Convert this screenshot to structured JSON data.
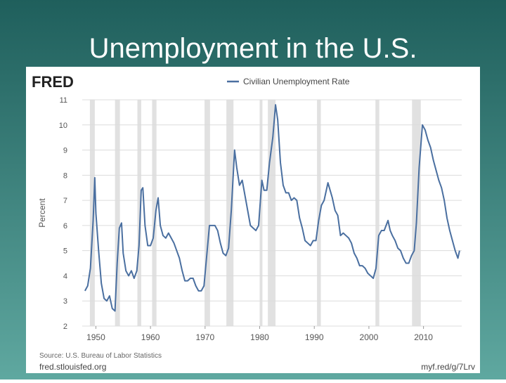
{
  "chart_data": {
    "type": "line",
    "title": "Unemployment in the U.S.",
    "brand": "FRED",
    "ylabel": "Percent",
    "source": "Source: U.S. Bureau of Labor Statistics",
    "footer_left": "fred.stlouisfed.org",
    "footer_right": "myf.red/g/7Lrv",
    "x": [
      1948.0,
      1948.5,
      1949.0,
      1949.5,
      1949.8,
      1950.0,
      1950.5,
      1951.0,
      1951.5,
      1952.0,
      1952.5,
      1953.0,
      1953.5,
      1953.9,
      1954.3,
      1954.7,
      1955.0,
      1955.5,
      1956.0,
      1956.5,
      1957.0,
      1957.5,
      1957.9,
      1958.3,
      1958.6,
      1959.0,
      1959.5,
      1960.0,
      1960.5,
      1961.0,
      1961.4,
      1961.8,
      1962.3,
      1962.8,
      1963.3,
      1963.8,
      1964.3,
      1964.8,
      1965.3,
      1965.8,
      1966.3,
      1966.8,
      1967.3,
      1967.8,
      1968.3,
      1968.8,
      1969.3,
      1969.8,
      1970.3,
      1970.8,
      1971.3,
      1971.8,
      1972.3,
      1972.8,
      1973.3,
      1973.8,
      1974.3,
      1974.8,
      1975.4,
      1975.8,
      1976.3,
      1976.8,
      1977.3,
      1977.8,
      1978.3,
      1978.8,
      1979.3,
      1979.8,
      1980.4,
      1980.8,
      1981.3,
      1981.8,
      1982.4,
      1982.9,
      1983.3,
      1983.8,
      1984.3,
      1984.8,
      1985.3,
      1985.8,
      1986.3,
      1986.8,
      1987.3,
      1987.8,
      1988.3,
      1988.8,
      1989.3,
      1989.8,
      1990.3,
      1990.8,
      1991.3,
      1991.8,
      1992.5,
      1992.9,
      1993.3,
      1993.8,
      1994.3,
      1994.8,
      1995.3,
      1995.8,
      1996.3,
      1996.8,
      1997.3,
      1997.8,
      1998.3,
      1998.8,
      1999.3,
      1999.8,
      2000.3,
      2000.8,
      2001.3,
      2001.8,
      2002.3,
      2002.8,
      2003.5,
      2003.9,
      2004.3,
      2004.8,
      2005.3,
      2005.8,
      2006.3,
      2006.8,
      2007.3,
      2007.8,
      2008.3,
      2008.7,
      2009.2,
      2009.8,
      2010.3,
      2010.8,
      2011.3,
      2011.8,
      2012.3,
      2012.8,
      2013.3,
      2013.8,
      2014.3,
      2014.8,
      2015.3,
      2015.8,
      2016.3,
      2016.6
    ],
    "series": [
      {
        "name": "Civilian Unemployment Rate",
        "color": "#4a6fa0",
        "values": [
          3.4,
          3.6,
          4.3,
          6.2,
          7.9,
          6.5,
          5.0,
          3.7,
          3.1,
          3.0,
          3.2,
          2.7,
          2.6,
          4.5,
          5.9,
          6.1,
          4.9,
          4.2,
          4.0,
          4.2,
          3.9,
          4.2,
          5.2,
          7.4,
          7.5,
          6.0,
          5.2,
          5.2,
          5.5,
          6.6,
          7.1,
          6.0,
          5.6,
          5.5,
          5.7,
          5.5,
          5.3,
          5.0,
          4.7,
          4.2,
          3.8,
          3.8,
          3.9,
          3.9,
          3.6,
          3.4,
          3.4,
          3.6,
          4.8,
          6.0,
          6.0,
          6.0,
          5.8,
          5.3,
          4.9,
          4.8,
          5.1,
          6.6,
          9.0,
          8.3,
          7.6,
          7.8,
          7.2,
          6.6,
          6.0,
          5.9,
          5.8,
          6.0,
          7.8,
          7.4,
          7.4,
          8.5,
          9.5,
          10.8,
          10.2,
          8.5,
          7.6,
          7.3,
          7.3,
          7.0,
          7.1,
          7.0,
          6.3,
          5.9,
          5.4,
          5.3,
          5.2,
          5.4,
          5.4,
          6.2,
          6.8,
          7.0,
          7.7,
          7.4,
          7.1,
          6.6,
          6.4,
          5.6,
          5.7,
          5.6,
          5.5,
          5.3,
          4.9,
          4.7,
          4.4,
          4.4,
          4.3,
          4.1,
          4.0,
          3.9,
          4.3,
          5.6,
          5.8,
          5.8,
          6.2,
          5.8,
          5.6,
          5.4,
          5.1,
          5.0,
          4.7,
          4.5,
          4.5,
          4.8,
          5.0,
          6.1,
          8.3,
          10.0,
          9.8,
          9.4,
          9.1,
          8.6,
          8.2,
          7.8,
          7.5,
          7.0,
          6.3,
          5.8,
          5.4,
          5.0,
          4.7,
          5.0
        ]
      }
    ],
    "recessions": [
      [
        1948.9,
        1949.8
      ],
      [
        1953.5,
        1954.4
      ],
      [
        1957.6,
        1958.3
      ],
      [
        1960.3,
        1961.1
      ],
      [
        1969.9,
        1970.9
      ],
      [
        1973.9,
        1975.2
      ],
      [
        1980.0,
        1980.5
      ],
      [
        1981.5,
        1982.9
      ],
      [
        1990.5,
        1991.2
      ],
      [
        2001.2,
        2001.9
      ],
      [
        2007.9,
        2009.5
      ]
    ],
    "recession_color": "#e1e1e1",
    "xlim": [
      1947.5,
      2017
    ],
    "ylim": [
      2,
      11
    ],
    "xticks": [
      1950,
      1960,
      1970,
      1980,
      1990,
      2000,
      2010
    ],
    "yticks": [
      2,
      3,
      4,
      5,
      6,
      7,
      8,
      9,
      10,
      11
    ],
    "grid": true
  }
}
